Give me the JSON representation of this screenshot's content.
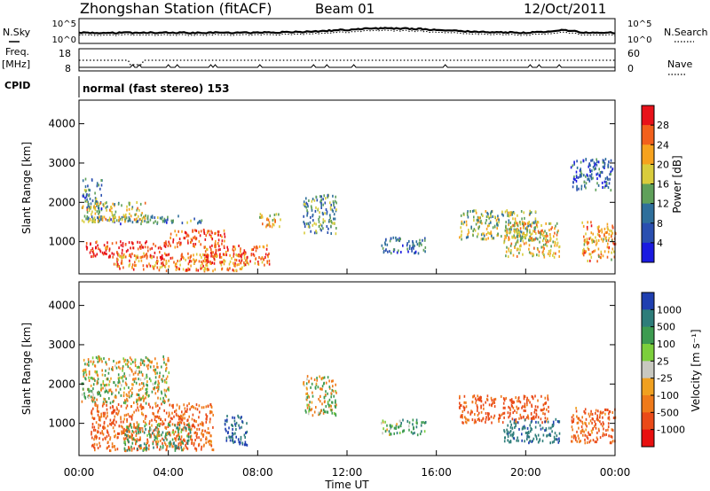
{
  "header": {
    "station_title": "Zhongshan Station (fitACF)",
    "beam": "Beam 01",
    "date": "12/Oct/2011"
  },
  "strips": {
    "nsky_label": "N.Sky",
    "nsearch_label": "N.Search",
    "nsky_ticks": [
      "10^5",
      "10^0"
    ],
    "nsearch_ticks": [
      "10^5",
      "10^0"
    ],
    "freq_label": "Freq.",
    "freq_unit": "[MHz]",
    "freq_ticks": [
      "18",
      "8"
    ],
    "nave_label": "Nave",
    "nave_ticks": [
      "60",
      "0"
    ],
    "cpid_label": "CPID",
    "cpid_value": "normal (fast stereo) 153"
  },
  "power_panel": {
    "ylabel": "Slant Range [km]",
    "yticks": [
      "4000",
      "3000",
      "2000",
      "1000"
    ],
    "colorbar_label": "Power [dB]",
    "colorbar_ticks": [
      "28",
      "24",
      "20",
      "16",
      "12",
      "8",
      "4"
    ],
    "colors": [
      "#e8121a",
      "#f2601c",
      "#f6a21e",
      "#d9cc3c",
      "#5fa05a",
      "#2f6f9b",
      "#2a4fb0",
      "#1a1ae0"
    ]
  },
  "velocity_panel": {
    "ylabel": "Slant Range [km]",
    "yticks": [
      "4000",
      "3000",
      "2000",
      "1000"
    ],
    "colorbar_label": "Velocity [m s⁻¹]",
    "colorbar_ticks": [
      "1000",
      "500",
      "100",
      "25",
      "-25",
      "-100",
      "-500",
      "-1000"
    ],
    "colors": [
      "#1f3fb0",
      "#2e7d7a",
      "#3d9b50",
      "#7ccf3c",
      "#c8c8c0",
      "#f0a020",
      "#ef7a1a",
      "#ea4a18",
      "#e81010"
    ]
  },
  "xaxis": {
    "ticks": [
      "00:00",
      "04:00",
      "08:00",
      "12:00",
      "16:00",
      "20:00",
      "00:00"
    ],
    "label": "Time UT"
  },
  "chart_data": [
    {
      "type": "heatmap",
      "title": "Zhongshan Station (fitACF)   Beam 01   12/Oct/2011",
      "xlabel": "Time UT",
      "ylabel": "Slant Range [km]",
      "colorbar": "Power [dB]",
      "xlim": [
        "00:00",
        "24:00"
      ],
      "ylim": [
        180,
        4600
      ],
      "clim": [
        0,
        30
      ],
      "regions": [
        {
          "t0": 0.1,
          "t1": 1.0,
          "r0": 1800,
          "r1": 2600,
          "value": 8
        },
        {
          "t0": 0.2,
          "t1": 5.5,
          "r0": 1450,
          "r1": 1650,
          "value": 8
        },
        {
          "t0": 0.1,
          "t1": 3.0,
          "r0": 1500,
          "r1": 2000,
          "value": 16
        },
        {
          "t0": 0.3,
          "t1": 4.0,
          "r0": 600,
          "r1": 1000,
          "value": 28
        },
        {
          "t0": 1.5,
          "t1": 7.5,
          "r0": 250,
          "r1": 700,
          "value": 22
        },
        {
          "t0": 4.0,
          "t1": 6.5,
          "r0": 850,
          "r1": 1300,
          "value": 26
        },
        {
          "t0": 5.5,
          "t1": 8.5,
          "r0": 400,
          "r1": 900,
          "value": 24
        },
        {
          "t0": 8.0,
          "t1": 9.0,
          "r0": 1350,
          "r1": 1700,
          "value": 18
        },
        {
          "t0": 10.0,
          "t1": 11.5,
          "r0": 1200,
          "r1": 2200,
          "value": 10
        },
        {
          "t0": 13.5,
          "t1": 15.5,
          "r0": 700,
          "r1": 1100,
          "value": 6
        },
        {
          "t0": 17.0,
          "t1": 20.5,
          "r0": 1000,
          "r1": 1800,
          "value": 14
        },
        {
          "t0": 19.0,
          "t1": 21.5,
          "r0": 600,
          "r1": 1500,
          "value": 18
        },
        {
          "t0": 22.0,
          "t1": 23.9,
          "r0": 2300,
          "r1": 3100,
          "value": 6
        },
        {
          "t0": 22.5,
          "t1": 24.0,
          "r0": 500,
          "r1": 1500,
          "value": 20
        }
      ]
    },
    {
      "type": "heatmap",
      "xlabel": "Time UT",
      "ylabel": "Slant Range [km]",
      "colorbar": "Velocity [m s⁻¹]",
      "xlim": [
        "00:00",
        "24:00"
      ],
      "ylim": [
        180,
        4600
      ],
      "clim": [
        -1000,
        1000
      ],
      "regions": [
        {
          "t0": 0.1,
          "t1": 4.0,
          "r0": 1500,
          "r1": 2700,
          "value": 0
        },
        {
          "t0": 0.5,
          "t1": 6.0,
          "r0": 300,
          "r1": 1500,
          "value": -300
        },
        {
          "t0": 2.0,
          "t1": 5.0,
          "r0": 300,
          "r1": 1000,
          "value": 150
        },
        {
          "t0": 6.5,
          "t1": 7.5,
          "r0": 400,
          "r1": 1200,
          "value": 800
        },
        {
          "t0": 10.0,
          "t1": 11.5,
          "r0": 1200,
          "r1": 2200,
          "value": 0
        },
        {
          "t0": 13.5,
          "t1": 15.5,
          "r0": 700,
          "r1": 1100,
          "value": 200
        },
        {
          "t0": 17.0,
          "t1": 21.0,
          "r0": 1000,
          "r1": 1700,
          "value": -400
        },
        {
          "t0": 19.0,
          "t1": 21.5,
          "r0": 500,
          "r1": 1100,
          "value": 600
        },
        {
          "t0": 22.0,
          "t1": 24.0,
          "r0": 500,
          "r1": 1400,
          "value": -300
        }
      ]
    }
  ]
}
